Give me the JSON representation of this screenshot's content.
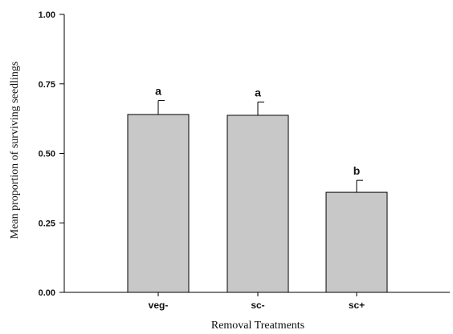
{
  "chart_data": {
    "type": "bar",
    "categories": [
      "veg-",
      "sc-",
      "sc+"
    ],
    "values": [
      0.64,
      0.637,
      0.36
    ],
    "errors": [
      0.05,
      0.048,
      0.043
    ],
    "significance_letters": [
      "a",
      "a",
      "b"
    ],
    "xlabel": "Removal Treatments",
    "ylabel": "Mean proportion of surviving seedlings",
    "ylim": [
      0,
      1
    ],
    "yticks": [
      0.0,
      0.25,
      0.5,
      0.75,
      1.0
    ],
    "ytick_labels": [
      "0.00",
      "0.25",
      "0.50",
      "0.75",
      "1.00"
    ],
    "bar_color": "#c8c8c8",
    "grid": false
  }
}
